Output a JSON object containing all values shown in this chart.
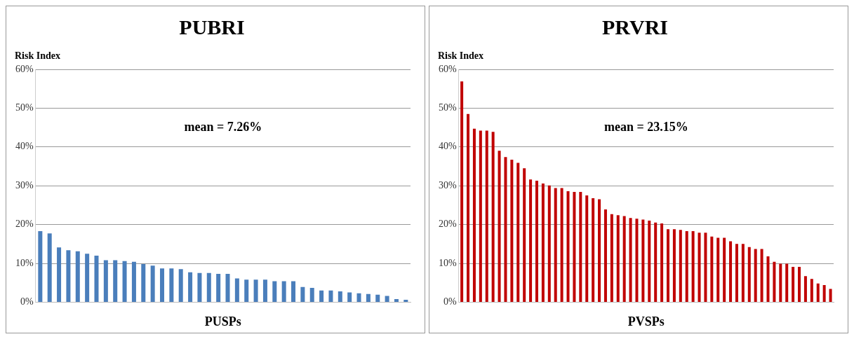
{
  "chart_data": [
    {
      "type": "bar",
      "title": "PUBRI",
      "ylabel": "Risk Index",
      "xlabel": "PUSPs",
      "annotations": [
        "mean = 7.26%"
      ],
      "color": "#4a7ebb",
      "grid": "y",
      "ylim": [
        0,
        60
      ],
      "yticks": [
        {
          "value": 0,
          "label": "0%"
        },
        {
          "value": 10,
          "label": "10%"
        },
        {
          "value": 20,
          "label": "20%"
        },
        {
          "value": 30,
          "label": "30%"
        },
        {
          "value": 40,
          "label": "40%"
        },
        {
          "value": 50,
          "label": "50%"
        },
        {
          "value": 60,
          "label": "60%"
        }
      ],
      "categories": [
        null,
        null,
        null,
        null,
        null,
        null,
        null,
        null,
        null,
        null,
        null,
        null,
        null,
        null,
        null,
        null,
        null,
        null,
        null,
        null,
        null,
        null,
        null,
        null,
        null,
        null,
        null,
        null,
        null,
        null,
        null,
        null,
        null,
        null,
        null,
        null,
        null,
        null,
        null,
        null
      ],
      "values": [
        18.3,
        17.7,
        14.1,
        13.4,
        13.1,
        12.5,
        12.0,
        10.8,
        10.8,
        10.6,
        10.4,
        9.8,
        9.4,
        8.7,
        8.7,
        8.5,
        7.7,
        7.5,
        7.5,
        7.3,
        7.3,
        6.1,
        5.8,
        5.8,
        5.8,
        5.4,
        5.4,
        5.4,
        3.9,
        3.7,
        3.0,
        3.0,
        2.8,
        2.5,
        2.3,
        2.1,
        1.9,
        1.6,
        0.8,
        0.6
      ]
    },
    {
      "type": "bar",
      "title": "PRVRI",
      "ylabel": "Risk Index",
      "xlabel": "PVSPs",
      "annotations": [
        "mean = 23.15%"
      ],
      "color": "#c00000",
      "grid": "y",
      "ylim": [
        0,
        60
      ],
      "yticks": [
        {
          "value": 0,
          "label": "0%"
        },
        {
          "value": 10,
          "label": "10%"
        },
        {
          "value": 20,
          "label": "20%"
        },
        {
          "value": 30,
          "label": "30%"
        },
        {
          "value": 40,
          "label": "40%"
        },
        {
          "value": 50,
          "label": "50%"
        },
        {
          "value": 60,
          "label": "60%"
        }
      ],
      "categories": [
        null,
        null,
        null,
        null,
        null,
        null,
        null,
        null,
        null,
        null,
        null,
        null,
        null,
        null,
        null,
        null,
        null,
        null,
        null,
        null,
        null,
        null,
        null,
        null,
        null,
        null,
        null,
        null,
        null,
        null,
        null,
        null,
        null,
        null,
        null,
        null,
        null,
        null,
        null,
        null,
        null,
        null,
        null,
        null,
        null,
        null,
        null,
        null,
        null,
        null,
        null,
        null,
        null,
        null,
        null,
        null,
        null,
        null,
        null,
        null
      ],
      "values": [
        56.9,
        48.5,
        44.7,
        44.2,
        44.2,
        43.9,
        39.0,
        37.4,
        36.7,
        35.9,
        34.5,
        31.6,
        31.3,
        30.6,
        30.1,
        29.4,
        29.4,
        28.6,
        28.4,
        28.4,
        27.5,
        26.8,
        26.5,
        23.9,
        22.7,
        22.4,
        22.2,
        21.7,
        21.5,
        21.3,
        21.0,
        20.5,
        20.3,
        18.8,
        18.8,
        18.6,
        18.3,
        18.3,
        17.9,
        17.9,
        16.9,
        16.6,
        16.6,
        15.7,
        15.0,
        15.0,
        14.2,
        13.7,
        13.7,
        11.8,
        10.4,
        9.9,
        9.9,
        9.1,
        9.1,
        6.7,
        6.0,
        4.8,
        4.4,
        3.4
      ]
    }
  ]
}
